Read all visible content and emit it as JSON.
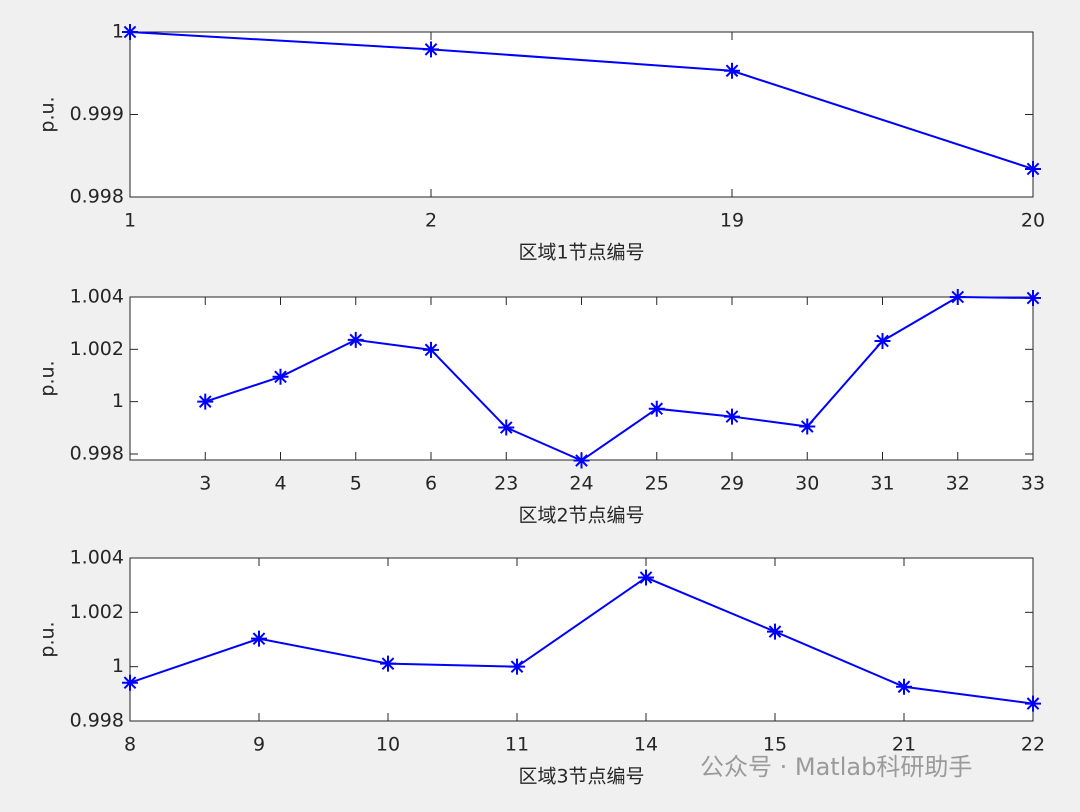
{
  "chart_data": [
    {
      "type": "line",
      "x_label": "区域1节点编号",
      "y_label": "p.u.",
      "marker": "asterisk",
      "categories": [
        "1",
        "2",
        "19",
        "20"
      ],
      "values": [
        1.0,
        0.99979,
        0.99953,
        0.99834
      ],
      "color": "#0000ff",
      "ylim": [
        0.998,
        1.0
      ],
      "yticks": [
        0.998,
        0.999,
        1
      ]
    },
    {
      "type": "line",
      "x_label": "区域2节点编号",
      "y_label": "p.u.",
      "marker": "asterisk",
      "categories": [
        null,
        "3",
        "4",
        "5",
        "6",
        "23",
        "24",
        "25",
        "29",
        "30",
        "31",
        "32",
        "33"
      ],
      "values": [
        null,
        1.0,
        1.00095,
        1.00236,
        1.00198,
        0.99901,
        0.99775,
        0.99973,
        0.99943,
        0.99905,
        1.00232,
        1.004,
        1.00396
      ],
      "color": "#0000ff",
      "ylim": [
        0.99777,
        1.004
      ],
      "yticks": [
        0.998,
        1,
        1.002,
        1.004
      ]
    },
    {
      "type": "line",
      "x_label": "区域3节点编号",
      "y_label": "p.u.",
      "marker": "asterisk",
      "categories": [
        "8",
        "9",
        "10",
        "11",
        "14",
        "15",
        "21",
        "22"
      ],
      "values": [
        0.99941,
        1.00103,
        1.00011,
        1.0,
        1.00328,
        1.00129,
        0.99926,
        0.99864
      ],
      "color": "#0000ff",
      "ylim": [
        0.998,
        1.004
      ],
      "yticks": [
        0.998,
        1,
        1.002,
        1.004
      ]
    }
  ],
  "watermark": "公众号 · Matlab科研助手"
}
